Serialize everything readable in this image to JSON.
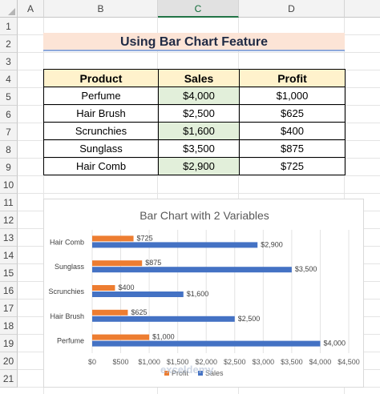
{
  "columns": [
    {
      "letter": "A"
    },
    {
      "letter": "B"
    },
    {
      "letter": "C"
    },
    {
      "letter": "D"
    }
  ],
  "rows": [
    "1",
    "2",
    "3",
    "4",
    "5",
    "6",
    "7",
    "8",
    "9",
    "10",
    "11",
    "12",
    "13",
    "14",
    "15",
    "16",
    "17",
    "18",
    "19",
    "20",
    "21"
  ],
  "sheet_title": "Using Bar Chart Feature",
  "table": {
    "headers": [
      "Product",
      "Sales",
      "Profit"
    ],
    "rows": [
      {
        "product": "Perfume",
        "sales": "$4,000",
        "profit": "$1,000"
      },
      {
        "product": "Hair Brush",
        "sales": "$2,500",
        "profit": "$625"
      },
      {
        "product": "Scrunchies",
        "sales": "$1,600",
        "profit": "$400"
      },
      {
        "product": "Sunglass",
        "sales": "$3,500",
        "profit": "$875"
      },
      {
        "product": "Hair Comb",
        "sales": "$2,900",
        "profit": "$725"
      }
    ]
  },
  "watermark": "exceldemy",
  "colors": {
    "profit": "#ed7d31",
    "sales": "#4472c4",
    "accent": "#217346"
  },
  "chart_data": {
    "type": "bar",
    "orientation": "horizontal",
    "title": "Bar Chart with 2 Variables",
    "categories": [
      "Perfume",
      "Hair Brush",
      "Scrunchies",
      "Sunglass",
      "Hair Comb"
    ],
    "series": [
      {
        "name": "Profit",
        "values": [
          1000,
          625,
          400,
          875,
          725
        ],
        "labels": [
          "$1,000",
          "$625",
          "$400",
          "$875",
          "$725"
        ]
      },
      {
        "name": "Sales",
        "values": [
          4000,
          2500,
          1600,
          3500,
          2900
        ],
        "labels": [
          "$4,000",
          "$2,500",
          "$1,600",
          "$3,500",
          "$2,900"
        ]
      }
    ],
    "xlim": [
      0,
      4500
    ],
    "xticks": [
      "$0",
      "$500",
      "$1,000",
      "$1,500",
      "$2,000",
      "$2,500",
      "$3,000",
      "$3,500",
      "$4,000",
      "$4,500"
    ],
    "grid": true,
    "legend": "bottom"
  }
}
